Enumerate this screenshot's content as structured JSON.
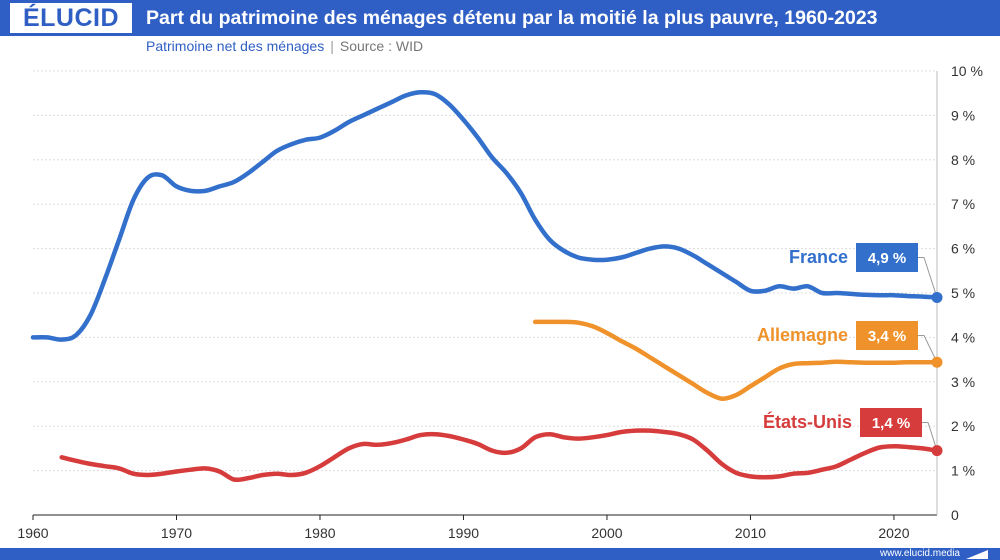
{
  "brand": {
    "logo": "ÉLUCID",
    "url": "www.elucid.media"
  },
  "colors": {
    "brand": "#2f5fc4",
    "france": "#3370cc",
    "allemagne": "#f0922b",
    "usa": "#d63c3c",
    "grid": "#dddddd"
  },
  "chart_data": {
    "type": "line",
    "title": "Part du patrimoine des ménages détenu par la moitié la plus pauvre, 1960-2023",
    "subtitle": "Patrimoine net des ménages",
    "source": "Source : WID",
    "xlabel": "",
    "ylabel": "",
    "xlim": [
      1960,
      2023
    ],
    "ylim": [
      0,
      10
    ],
    "x_ticks": [
      1960,
      1970,
      1980,
      1990,
      2000,
      2010,
      2020
    ],
    "y_ticks": [
      0,
      1,
      2,
      3,
      4,
      5,
      6,
      7,
      8,
      9,
      10
    ],
    "y_tick_labels": [
      "0",
      "1 %",
      "2 %",
      "3 %",
      "4 %",
      "5 %",
      "6 %",
      "7 %",
      "8 %",
      "9 %",
      "10 %"
    ],
    "series": [
      {
        "name": "France",
        "color": "#3370cc",
        "end_label": "4,9 %",
        "x": [
          1960,
          1961,
          1962,
          1963,
          1964,
          1965,
          1966,
          1967,
          1968,
          1969,
          1970,
          1971,
          1972,
          1973,
          1974,
          1975,
          1976,
          1977,
          1978,
          1979,
          1980,
          1981,
          1982,
          1983,
          1984,
          1985,
          1986,
          1987,
          1988,
          1989,
          1990,
          1991,
          1992,
          1993,
          1994,
          1995,
          1996,
          1997,
          1998,
          1999,
          2000,
          2001,
          2002,
          2003,
          2004,
          2005,
          2006,
          2007,
          2008,
          2009,
          2010,
          2011,
          2012,
          2013,
          2014,
          2015,
          2016,
          2017,
          2018,
          2019,
          2020,
          2021,
          2022,
          2023
        ],
        "values": [
          4.0,
          4.0,
          3.95,
          4.05,
          4.5,
          5.3,
          6.2,
          7.1,
          7.6,
          7.65,
          7.4,
          7.3,
          7.3,
          7.4,
          7.5,
          7.7,
          7.95,
          8.2,
          8.35,
          8.45,
          8.5,
          8.65,
          8.85,
          9.0,
          9.15,
          9.3,
          9.45,
          9.52,
          9.48,
          9.25,
          8.9,
          8.5,
          8.05,
          7.7,
          7.25,
          6.65,
          6.2,
          5.95,
          5.8,
          5.75,
          5.75,
          5.8,
          5.9,
          6.0,
          6.05,
          6.0,
          5.85,
          5.65,
          5.45,
          5.25,
          5.05,
          5.05,
          5.15,
          5.1,
          5.15,
          5.0,
          5.0,
          4.98,
          4.96,
          4.95,
          4.95,
          4.93,
          4.92,
          4.9
        ]
      },
      {
        "name": "Allemagne",
        "color": "#f0922b",
        "end_label": "3,4 %",
        "x": [
          1995,
          1996,
          1997,
          1998,
          1999,
          2000,
          2001,
          2002,
          2003,
          2004,
          2005,
          2006,
          2007,
          2008,
          2009,
          2010,
          2011,
          2012,
          2013,
          2014,
          2015,
          2016,
          2017,
          2018,
          2019,
          2020,
          2021,
          2022,
          2023
        ],
        "values": [
          4.35,
          4.35,
          4.35,
          4.33,
          4.25,
          4.1,
          3.92,
          3.75,
          3.55,
          3.35,
          3.15,
          2.95,
          2.75,
          2.62,
          2.7,
          2.9,
          3.1,
          3.3,
          3.4,
          3.42,
          3.43,
          3.45,
          3.44,
          3.43,
          3.43,
          3.43,
          3.44,
          3.44,
          3.44
        ]
      },
      {
        "name": "États-Unis",
        "color": "#d63c3c",
        "end_label": "1,4 %",
        "x": [
          1962,
          1963,
          1964,
          1965,
          1966,
          1967,
          1968,
          1969,
          1970,
          1971,
          1972,
          1973,
          1974,
          1975,
          1976,
          1977,
          1978,
          1979,
          1980,
          1981,
          1982,
          1983,
          1984,
          1985,
          1986,
          1987,
          1988,
          1989,
          1990,
          1991,
          1992,
          1993,
          1994,
          1995,
          1996,
          1997,
          1998,
          1999,
          2000,
          2001,
          2002,
          2003,
          2004,
          2005,
          2006,
          2007,
          2008,
          2009,
          2010,
          2011,
          2012,
          2013,
          2014,
          2015,
          2016,
          2017,
          2018,
          2019,
          2020,
          2021,
          2022,
          2023
        ],
        "values": [
          1.3,
          1.22,
          1.15,
          1.1,
          1.05,
          0.93,
          0.9,
          0.93,
          0.98,
          1.02,
          1.05,
          0.98,
          0.8,
          0.83,
          0.9,
          0.93,
          0.9,
          0.95,
          1.1,
          1.3,
          1.5,
          1.6,
          1.58,
          1.62,
          1.7,
          1.8,
          1.82,
          1.78,
          1.7,
          1.6,
          1.45,
          1.4,
          1.5,
          1.75,
          1.82,
          1.75,
          1.72,
          1.75,
          1.8,
          1.87,
          1.9,
          1.9,
          1.87,
          1.82,
          1.7,
          1.45,
          1.15,
          0.95,
          0.87,
          0.85,
          0.87,
          0.93,
          0.95,
          1.02,
          1.1,
          1.25,
          1.4,
          1.52,
          1.55,
          1.53,
          1.5,
          1.45
        ]
      }
    ]
  }
}
